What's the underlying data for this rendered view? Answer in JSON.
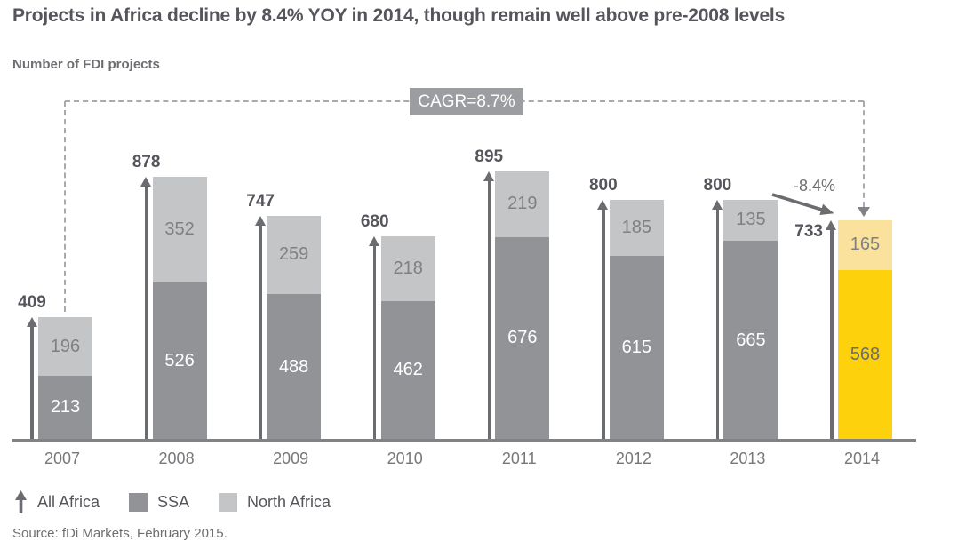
{
  "title": "Projects in Africa decline by 8.4% YOY in 2014, though remain well above pre-2008 levels",
  "subtitle": "Number of FDI projects",
  "source_note": "Source: fDi Markets, February 2015.",
  "annotations": {
    "cagr_label": "CAGR=8.7%",
    "yoy_change_label": "-8.4%"
  },
  "legend": {
    "items": [
      {
        "label": "All Africa",
        "marker": "arrow-up-icon"
      },
      {
        "label": "SSA",
        "marker": "square",
        "color": "#919396"
      },
      {
        "label": "North Africa",
        "marker": "square",
        "color": "#C4C5C7"
      }
    ]
  },
  "colors": {
    "title_text": "#55565C",
    "subtitle_text": "#6D6E71",
    "ssa_bar": "#919396",
    "north_africa_bar": "#C4C5C7",
    "ssa_2014_bar": "#FDD20C",
    "north_africa_2014_bar": "#FAE29C",
    "segment_label_on_dark": "#FFFFFF",
    "segment_label_on_light": "#7E8083",
    "segment_label_on_yellow": "#6B6C6E",
    "total_label": "#55565C",
    "year_label": "#77787B",
    "arrow": "#6A6C70",
    "axis": "#808285",
    "dashed_line": "#A8AAAD",
    "cagr_badge_bg": "#9B9DA0",
    "cagr_badge_text": "#FFFFFF",
    "yoy_label": "#6D6E71",
    "source_text": "#6D6E71",
    "legend_text": "#55565C"
  },
  "chart_data": {
    "type": "bar",
    "stacked": true,
    "title": "Number of FDI projects",
    "categories": [
      "2007",
      "2008",
      "2009",
      "2010",
      "2011",
      "2012",
      "2013",
      "2014"
    ],
    "series": [
      {
        "name": "SSA",
        "values": [
          213,
          526,
          488,
          462,
          676,
          615,
          665,
          568
        ]
      },
      {
        "name": "North Africa",
        "values": [
          196,
          352,
          259,
          218,
          219,
          185,
          135,
          165
        ]
      }
    ],
    "totals": [
      409,
      878,
      747,
      680,
      895,
      800,
      800,
      733
    ],
    "total_series_name": "All Africa",
    "highlight_category": "2014",
    "cagr_2007_2014": "CAGR=8.7%",
    "yoy_change_2014": "-8.4%",
    "ylim": [
      0,
      950
    ],
    "y_axis_visible": false,
    "grid": false,
    "legend_position": "bottom"
  }
}
